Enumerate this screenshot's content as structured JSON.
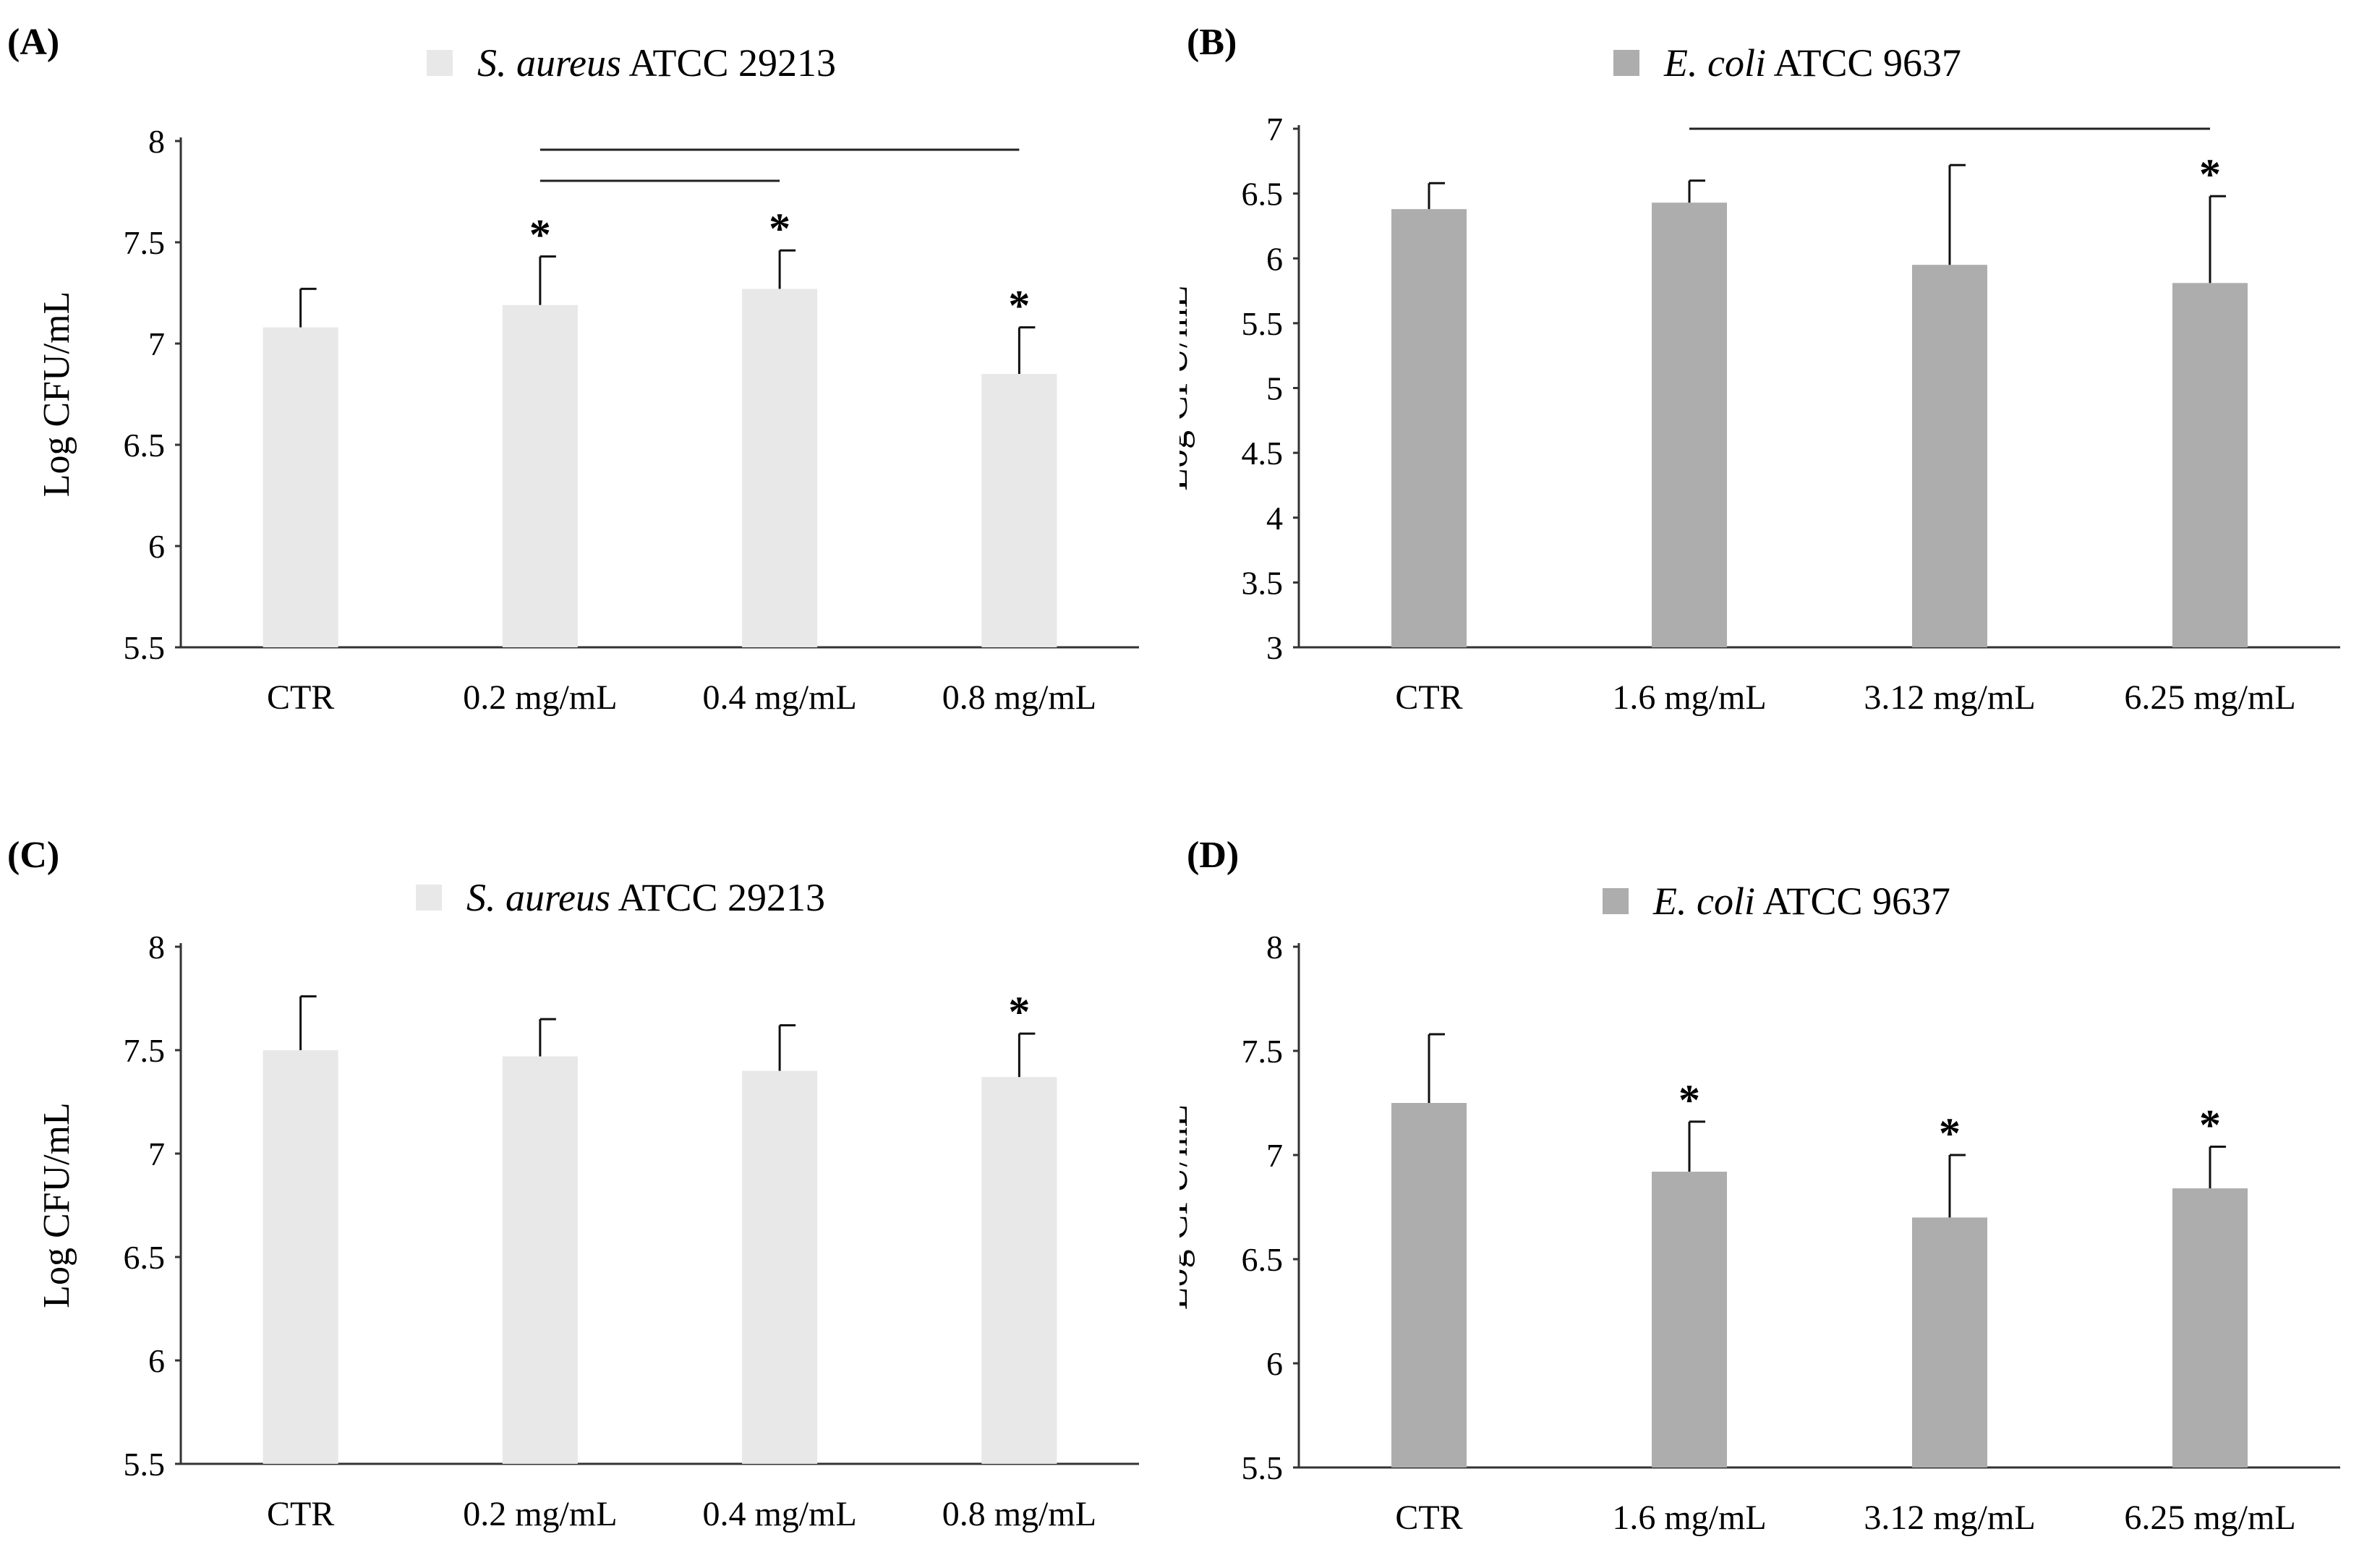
{
  "chart_data": [
    {
      "panel": "(A)",
      "type": "bar",
      "legend": {
        "species": "S. aureus",
        "strain": "ATCC 29213"
      },
      "bar_color": "#e8e8e8",
      "ylabel": "Log CFU/mL",
      "ylim": [
        5.5,
        8
      ],
      "yticks": [
        "5.5",
        "6",
        "6.5",
        "7",
        "7.5",
        "8"
      ],
      "categories": [
        "CTR",
        "0.2 mg/mL",
        "0.4 mg/mL",
        "0.8 mg/mL"
      ],
      "values": [
        7.08,
        7.19,
        7.27,
        6.85
      ],
      "errors": [
        0.19,
        0.24,
        0.19,
        0.23
      ],
      "significance": [
        "",
        "*",
        "*",
        "*"
      ],
      "brackets": [
        [
          1,
          2
        ],
        [
          1,
          3
        ]
      ]
    },
    {
      "panel": "(B)",
      "type": "bar",
      "legend": {
        "species": "E. coli",
        "strain": "ATCC 9637"
      },
      "bar_color": "#adadad",
      "ylabel": "Log CFU/mL",
      "ylim": [
        3,
        7
      ],
      "yticks": [
        "3",
        "3.5",
        "4",
        "4.5",
        "5",
        "5.5",
        "6",
        "6.5",
        "7"
      ],
      "categories": [
        "CTR",
        "1.6 mg/mL",
        "3.12 mg/mL",
        "6.25 mg/mL"
      ],
      "values": [
        6.38,
        6.43,
        5.95,
        5.81
      ],
      "errors": [
        0.2,
        0.17,
        0.77,
        0.67
      ],
      "significance": [
        "",
        "",
        "",
        "*"
      ],
      "brackets": [
        [
          1,
          3
        ]
      ]
    },
    {
      "panel": "(C)",
      "type": "bar",
      "legend": {
        "species": "S. aureus",
        "strain": "ATCC 29213"
      },
      "bar_color": "#e8e8e8",
      "ylabel": "Log CFU/mL",
      "ylim": [
        5.5,
        8
      ],
      "yticks": [
        "5.5",
        "6",
        "6.5",
        "7",
        "7.5",
        "8"
      ],
      "categories": [
        "CTR",
        "0.2 mg/mL",
        "0.4 mg/mL",
        "0.8 mg/mL"
      ],
      "values": [
        7.5,
        7.47,
        7.4,
        7.37
      ],
      "errors": [
        0.26,
        0.18,
        0.22,
        0.21
      ],
      "significance": [
        "",
        "",
        "",
        "*"
      ],
      "brackets": []
    },
    {
      "panel": "(D)",
      "type": "bar",
      "legend": {
        "species": "E. coli",
        "strain": "ATCC 9637"
      },
      "bar_color": "#adadad",
      "ylabel": "Log CFU/mL",
      "ylim": [
        5.5,
        8
      ],
      "yticks": [
        "5.5",
        "6",
        "6.5",
        "7",
        "7.5",
        "8"
      ],
      "categories": [
        "CTR",
        "1.6 mg/mL",
        "3.12 mg/mL",
        "6.25 mg/mL"
      ],
      "values": [
        7.25,
        6.92,
        6.7,
        6.84
      ],
      "errors": [
        0.33,
        0.24,
        0.3,
        0.2
      ],
      "significance": [
        "",
        "*",
        "*",
        "*"
      ],
      "brackets": []
    }
  ]
}
